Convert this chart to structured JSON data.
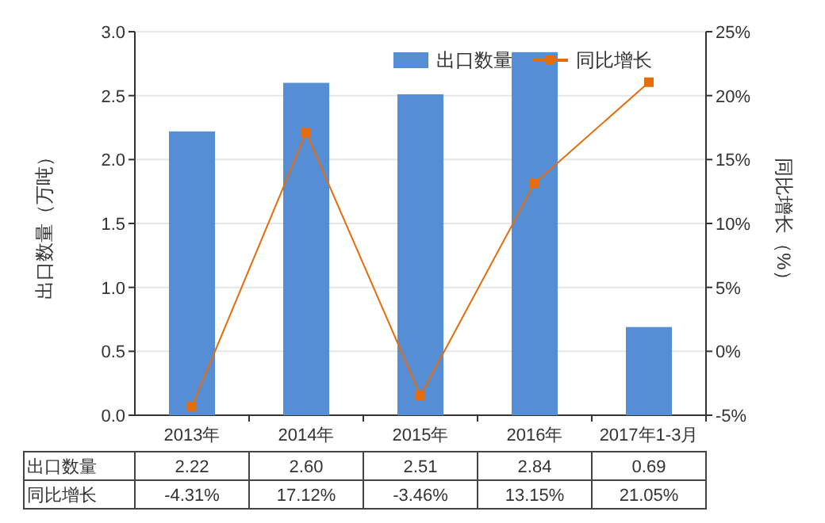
{
  "chart_data": {
    "type": "bar",
    "categories": [
      "2013年",
      "2014年",
      "2015年",
      "2016年",
      "2017年1-3月"
    ],
    "series": [
      {
        "name": "出口数量",
        "color": "#558ed5",
        "values": [
          2.22,
          2.6,
          2.51,
          2.84,
          0.69
        ],
        "value_labels": [
          "2.22",
          "2.60",
          "2.51",
          "2.84",
          "0.69"
        ]
      },
      {
        "name": "同比增长",
        "type": "line",
        "axis": "y2",
        "color": "#e46c0a",
        "marker": "square",
        "values": [
          -4.31,
          17.12,
          -3.46,
          13.15,
          21.05
        ],
        "value_labels": [
          "-4.31%",
          "17.12%",
          "-3.46%",
          "13.15%",
          "21.05%"
        ]
      }
    ],
    "ylabel": "出口数量（万吨）",
    "y2label": "同比增长（%）",
    "ylim": [
      0,
      3
    ],
    "yticks": [
      {
        "value": 0,
        "label": "0.0"
      },
      {
        "value": 0.5,
        "label": "0.5"
      },
      {
        "value": 1,
        "label": "1.0"
      },
      {
        "value": 1.5,
        "label": "1.5"
      },
      {
        "value": 2,
        "label": "2.0"
      },
      {
        "value": 2.5,
        "label": "2.5"
      },
      {
        "value": 3,
        "label": "3.0"
      }
    ],
    "y2lim": [
      -5,
      25
    ],
    "y2ticks": [
      {
        "value": -5,
        "label": "-5%"
      },
      {
        "value": 0,
        "label": "0%"
      },
      {
        "value": 5,
        "label": "5%"
      },
      {
        "value": 10,
        "label": "10%"
      },
      {
        "value": 15,
        "label": "15%"
      },
      {
        "value": 20,
        "label": "20%"
      },
      {
        "value": 25,
        "label": "25%"
      }
    ],
    "grid": "y",
    "legend": "top right",
    "data_labels": true
  }
}
